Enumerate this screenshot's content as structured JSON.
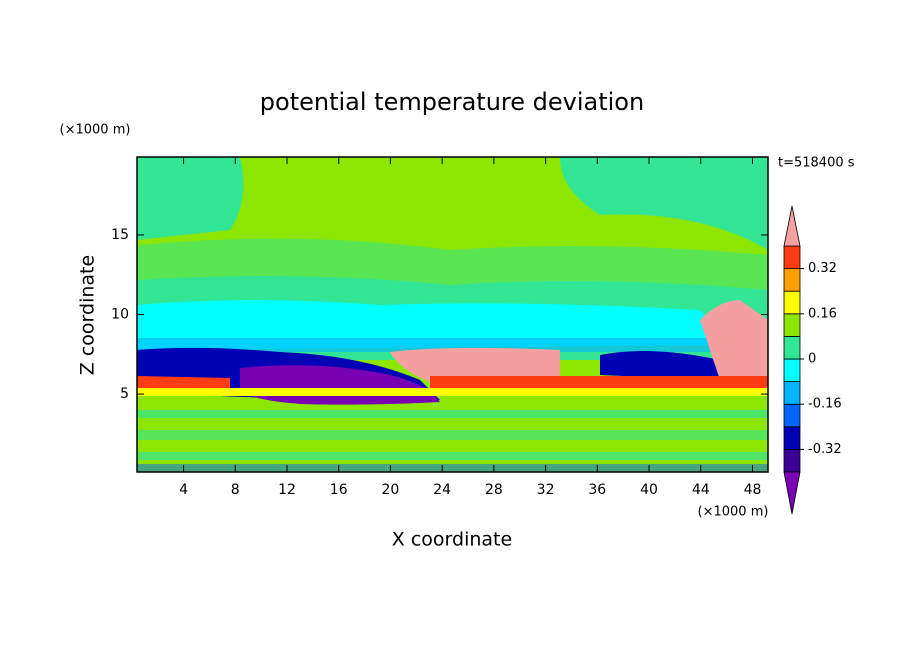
{
  "chart_data": {
    "type": "contour",
    "title": "potential temperature deviation",
    "x_label": "X coordinate",
    "y_label": "Z coordinate",
    "x_unit": "(×1000 m)",
    "y_unit": "(×1000 m)",
    "time_label": "t=518400 s",
    "xlim": [
      0.4,
      49.2
    ],
    "ylim": [
      0.1,
      19.9
    ],
    "xticks": [
      4,
      8,
      12,
      16,
      20,
      24,
      28,
      32,
      36,
      40,
      44,
      48
    ],
    "yticks": [
      5,
      10,
      15
    ],
    "levels": [
      -0.4,
      -0.32,
      -0.24,
      -0.16,
      -0.08,
      0,
      0.08,
      0.16,
      0.24,
      0.32,
      0.4
    ],
    "colors": [
      "#7a00b4",
      "#3c0096",
      "#0000b4",
      "#0064ff",
      "#00b4ff",
      "#00ffff",
      "#32e696",
      "#8ce600",
      "#ffff00",
      "#ffa000",
      "#ff3c14",
      "#f5a0a0"
    ],
    "colorbar_ticks": [
      -0.32,
      -0.16,
      0,
      0.16,
      0.32
    ]
  }
}
